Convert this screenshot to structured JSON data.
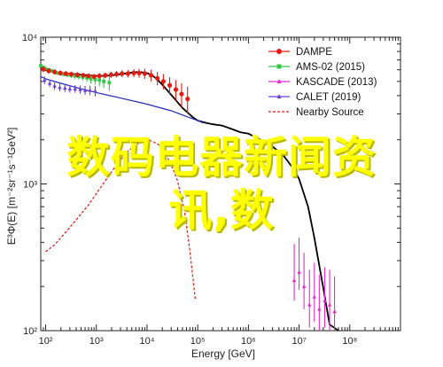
{
  "overlay": {
    "line1": "数码电器新闻资",
    "line2": "讯,数"
  },
  "chart_data": {
    "type": "scatter",
    "title": "",
    "xlabel": "Energy [GeV]",
    "ylabel": "E³Φ(E) [m⁻²sr⁻¹s⁻¹GeV²]",
    "xscale": "log",
    "yscale": "log",
    "xlim": [
      80,
      1000000000
    ],
    "ylim": [
      100,
      10000
    ],
    "x_ticks": [
      "10²",
      "10³",
      "10⁴",
      "10⁵",
      "10⁶",
      "10⁷",
      "10⁸"
    ],
    "y_ticks": [
      "10²",
      "10³",
      "10⁴"
    ],
    "legend_position": "top-right",
    "colors": {
      "dampe": "#e8190f",
      "ams": "#35c749",
      "kascade": "#e52bd2",
      "calet": "#6b3fd8",
      "nearby": "#e8190f",
      "total": "#000000",
      "background": "#1f2bb6"
    },
    "series": [
      {
        "name": "DAMPE",
        "marker": "circle",
        "x": [
          55,
          70,
          90,
          115,
          150,
          195,
          250,
          320,
          420,
          550,
          700,
          900,
          1150,
          1500,
          1950,
          2500,
          3200,
          4200,
          5500,
          7000,
          9000,
          12000,
          16000,
          21000,
          28000,
          37000,
          48000,
          63000
        ],
        "y": [
          6300,
          6200,
          6050,
          5900,
          5800,
          5700,
          5650,
          5600,
          5550,
          5500,
          5450,
          5400,
          5450,
          5500,
          5550,
          5600,
          5650,
          5650,
          5700,
          5700,
          5650,
          5500,
          5250,
          5000,
          4700,
          4400,
          4100,
          3800
        ],
        "err": [
          300,
          280,
          260,
          250,
          240,
          230,
          220,
          220,
          220,
          220,
          220,
          220,
          230,
          240,
          260,
          280,
          300,
          330,
          360,
          400,
          450,
          500,
          550,
          600,
          650,
          700,
          750,
          800
        ]
      },
      {
        "name": "AMS-02 (2015)",
        "marker": "square",
        "x": [
          50,
          55,
          60,
          66,
          73,
          80,
          90,
          100,
          115,
          130,
          150,
          170,
          200,
          230,
          270,
          320,
          380,
          450,
          540,
          650,
          780,
          950,
          1150,
          1400,
          1800
        ],
        "y": [
          7200,
          7000,
          6800,
          6700,
          6500,
          6400,
          6250,
          6100,
          6000,
          5900,
          5800,
          5700,
          5650,
          5600,
          5550,
          5500,
          5450,
          5400,
          5350,
          5300,
          5200,
          5150,
          5100,
          5000,
          4900
        ],
        "err": [
          150,
          150,
          150,
          150,
          150,
          150,
          150,
          150,
          150,
          160,
          160,
          170,
          180,
          190,
          200,
          220,
          240,
          260,
          290,
          320,
          350,
          400,
          450,
          500,
          600
        ]
      },
      {
        "name": "KASCADE (2013)",
        "marker": "triangle-up",
        "x": [
          8000000,
          10000000,
          12500000,
          16000000,
          20000000,
          25000000,
          32000000,
          40000000,
          50000000
        ],
        "y": [
          220,
          250,
          200,
          150,
          170,
          140,
          160,
          150,
          135
        ],
        "err_low": [
          60,
          60,
          60,
          45,
          55,
          45,
          55,
          55,
          50
        ],
        "err_high": [
          170,
          180,
          140,
          110,
          120,
          100,
          110,
          110,
          100
        ]
      },
      {
        "name": "CALET (2019)",
        "marker": "triangle-up",
        "x": [
          50,
          60,
          75,
          95,
          120,
          150,
          190,
          240,
          300,
          380,
          480,
          600,
          750,
          950
        ],
        "y": [
          6200,
          5800,
          5400,
          5100,
          4850,
          4650,
          4550,
          4500,
          4450,
          4450,
          4400,
          4350,
          4350,
          4300
        ],
        "err": [
          400,
          350,
          320,
          300,
          280,
          270,
          260,
          260,
          260,
          270,
          280,
          300,
          320,
          350
        ]
      },
      {
        "name": "Nearby Source",
        "style": "dashed",
        "x": [
          100,
          150,
          250,
          400,
          700,
          1000,
          1500,
          2500,
          4000,
          6000,
          8000,
          10000,
          13000,
          17000,
          22000,
          30000,
          40000,
          55000,
          70000,
          90000,
          110000
        ],
        "y": [
          345,
          385,
          470,
          570,
          720,
          860,
          1050,
          1350,
          1650,
          1850,
          1950,
          2000,
          1950,
          1850,
          1650,
          1350,
          1050,
          650,
          350,
          160,
          85
        ]
      }
    ],
    "model_lines": [
      {
        "name": "total",
        "x": [
          50,
          60,
          80,
          100,
          150,
          200,
          300,
          500,
          700,
          1000,
          1500,
          2000,
          3000,
          5000,
          7000,
          10000,
          13000,
          16000,
          20000,
          30000,
          50000,
          80000,
          100000,
          150000,
          200000,
          300000,
          500000,
          700000,
          1000000,
          2000000,
          3000000,
          5000000,
          8000000,
          10000000,
          15000000,
          20000000,
          30000000,
          40000000,
          60000000
        ],
        "y": [
          6600,
          6400,
          6150,
          5950,
          5800,
          5700,
          5650,
          5550,
          5500,
          5450,
          5450,
          5500,
          5600,
          5750,
          5800,
          5700,
          5450,
          5150,
          4750,
          4050,
          3300,
          2850,
          2700,
          2600,
          2550,
          2500,
          2350,
          2250,
          2200,
          1950,
          1800,
          1550,
          1250,
          1080,
          700,
          430,
          195,
          110,
          45
        ]
      },
      {
        "name": "background",
        "x": [
          50,
          80,
          100,
          200,
          500,
          1000,
          3000,
          10000,
          30000,
          100000,
          130000
        ],
        "y": [
          5700,
          5400,
          5200,
          4850,
          4450,
          4200,
          3850,
          3500,
          3150,
          2700,
          2600
        ]
      }
    ]
  }
}
